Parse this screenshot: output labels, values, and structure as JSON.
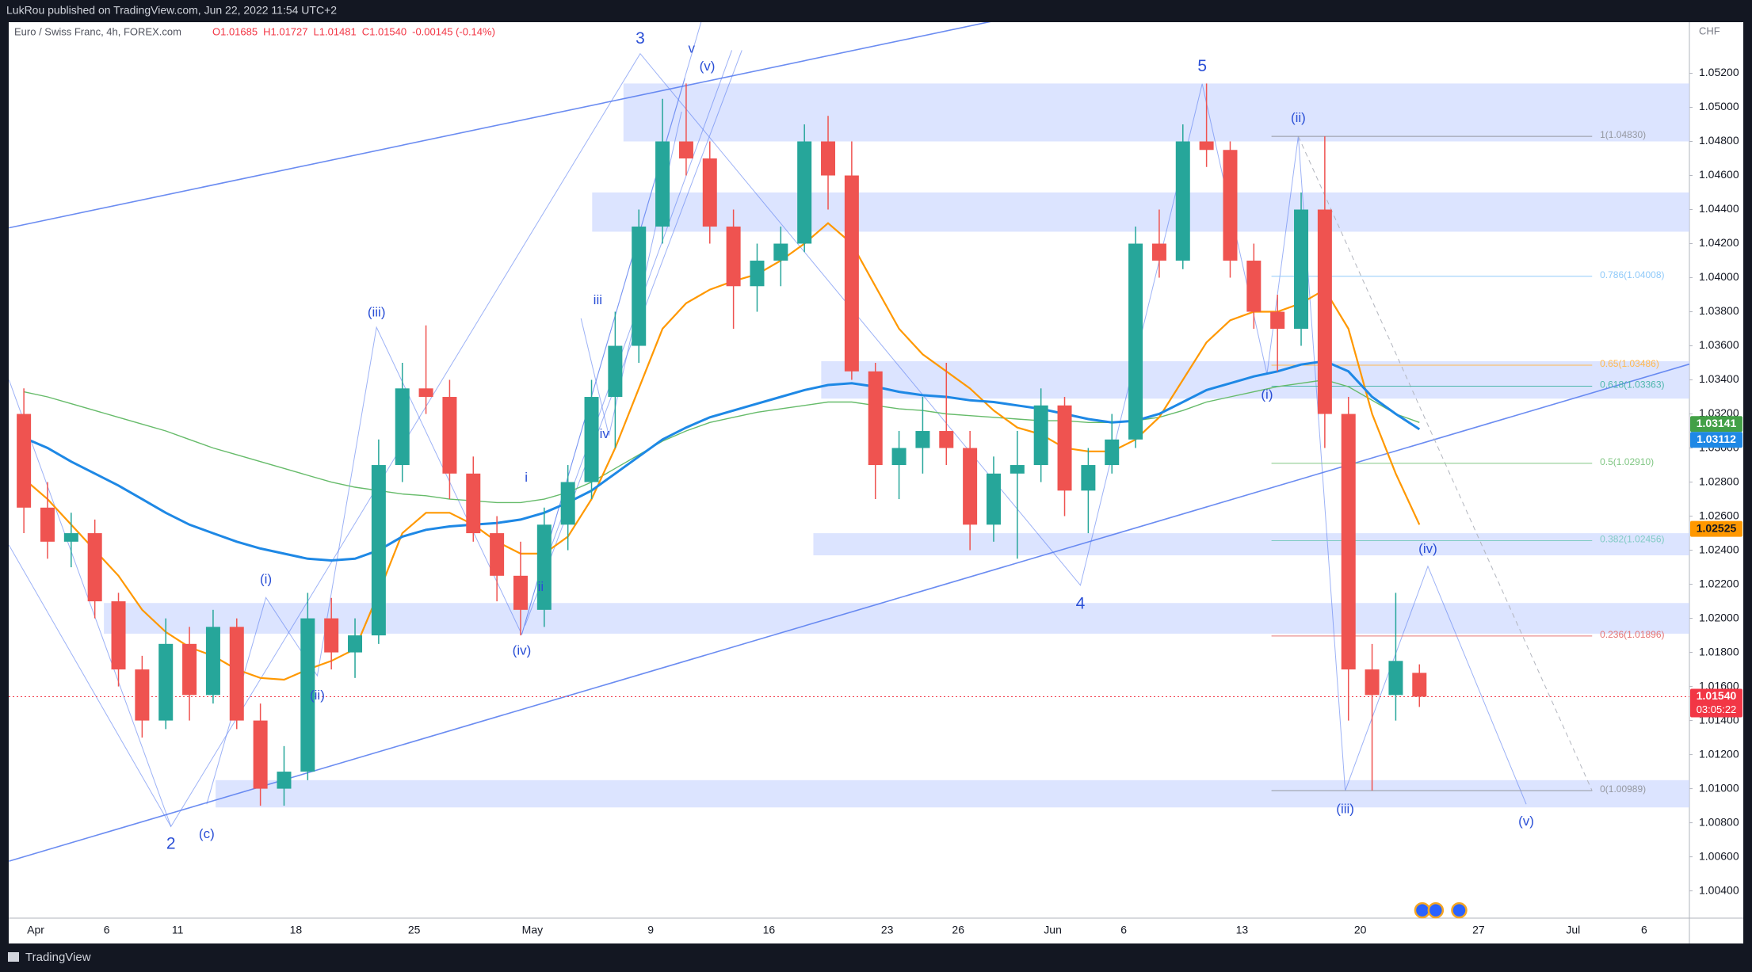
{
  "header": "LukRou published on TradingView.com, Jun 22, 2022 11:54 UTC+2",
  "footer": "TradingView",
  "chart_data": {
    "type": "candlestick",
    "title": "Euro / Swiss Franc, 4h, FOREX.com",
    "ohlc_legend": [
      "O1.01685",
      "H1.01727",
      "L1.01481",
      "C1.01540",
      "-0.00145 (-0.14%)"
    ],
    "y_axis_label": "CHF",
    "categories": [
      null,
      "Apr",
      null,
      null,
      "6",
      null,
      null,
      "11",
      null,
      null,
      null,
      null,
      "18",
      null,
      null,
      null,
      null,
      "25",
      null,
      null,
      null,
      null,
      "May",
      null,
      null,
      null,
      null,
      "9",
      null,
      null,
      null,
      null,
      "16",
      null,
      null,
      null,
      null,
      "23",
      null,
      null,
      "26",
      null,
      null,
      null,
      "Jun",
      null,
      null,
      "6",
      null,
      null,
      null,
      null,
      "13",
      null,
      null,
      null,
      null,
      "20",
      null,
      null,
      null,
      null,
      "27",
      null,
      null,
      null,
      "Jul",
      null,
      null,
      "6"
    ],
    "open": [
      1.032,
      1.0265,
      1.0245,
      1.025,
      1.021,
      1.017,
      1.014,
      1.0185,
      1.0155,
      1.0195,
      1.014,
      1.01,
      1.011,
      1.02,
      1.018,
      1.019,
      1.029,
      1.0335,
      1.033,
      1.0285,
      1.025,
      1.0225,
      1.0205,
      1.0255,
      1.028,
      1.033,
      1.036,
      1.043,
      1.048,
      1.047,
      1.043,
      1.0395,
      1.041,
      1.042,
      1.048,
      1.046,
      1.0345,
      1.029,
      1.03,
      1.031,
      1.03,
      1.0255,
      1.0285,
      1.029,
      1.0325,
      1.0275,
      1.029,
      1.0305,
      1.042,
      1.041,
      1.048,
      1.0475,
      1.041,
      1.038,
      1.037,
      1.044,
      1.032,
      1.017,
      1.0155,
      1.0168,
      null,
      null,
      null,
      null,
      null,
      null,
      null,
      null,
      null,
      null
    ],
    "high": [
      1.0335,
      1.028,
      1.0262,
      1.0258,
      1.0215,
      1.0178,
      1.02,
      1.0195,
      1.0205,
      1.02,
      1.015,
      1.0125,
      1.0215,
      1.0212,
      1.02,
      1.0305,
      1.035,
      1.0372,
      1.034,
      1.0295,
      1.026,
      1.0245,
      1.0265,
      1.029,
      1.034,
      1.038,
      1.044,
      1.0505,
      1.0514,
      1.048,
      1.044,
      1.042,
      1.043,
      1.049,
      1.0495,
      1.048,
      1.035,
      1.031,
      1.033,
      1.035,
      1.031,
      1.0295,
      1.031,
      1.0335,
      1.033,
      1.03,
      1.032,
      1.043,
      1.044,
      1.049,
      1.0514,
      1.048,
      1.042,
      1.039,
      1.045,
      1.0483,
      1.033,
      1.0185,
      1.0215,
      1.0173,
      null,
      null,
      null,
      null,
      null,
      null,
      null,
      null,
      null,
      null
    ],
    "low": [
      1.025,
      1.0235,
      1.023,
      1.02,
      1.016,
      1.013,
      1.0135,
      1.014,
      1.015,
      1.0135,
      1.009,
      1.009,
      1.0105,
      1.017,
      1.0165,
      1.0185,
      1.028,
      1.032,
      1.027,
      1.0245,
      1.021,
      1.019,
      1.0195,
      1.024,
      1.027,
      1.03,
      1.035,
      1.042,
      1.046,
      1.042,
      1.037,
      1.038,
      1.0395,
      1.0415,
      1.044,
      1.034,
      1.027,
      1.027,
      1.0285,
      1.029,
      1.024,
      1.0245,
      1.0235,
      1.028,
      1.026,
      1.025,
      1.0285,
      1.03,
      1.04,
      1.0405,
      1.0465,
      1.04,
      1.037,
      1.0345,
      1.036,
      1.03,
      1.014,
      1.0099,
      1.014,
      1.0148,
      null,
      null,
      null,
      null,
      null,
      null,
      null,
      null,
      null,
      null
    ],
    "close": [
      1.0265,
      1.0245,
      1.025,
      1.021,
      1.017,
      1.014,
      1.0185,
      1.0155,
      1.0195,
      1.014,
      1.01,
      1.011,
      1.02,
      1.018,
      1.019,
      1.029,
      1.0335,
      1.033,
      1.0285,
      1.025,
      1.0225,
      1.0205,
      1.0255,
      1.028,
      1.033,
      1.036,
      1.043,
      1.048,
      1.047,
      1.043,
      1.0395,
      1.041,
      1.042,
      1.048,
      1.046,
      1.0345,
      1.029,
      1.03,
      1.031,
      1.03,
      1.0255,
      1.0285,
      1.029,
      1.0325,
      1.0275,
      1.029,
      1.0305,
      1.042,
      1.041,
      1.048,
      1.0475,
      1.041,
      1.038,
      1.037,
      1.044,
      1.032,
      1.017,
      1.0155,
      1.0175,
      1.0154,
      null,
      null,
      null,
      null,
      null,
      null,
      null,
      null,
      null,
      null
    ],
    "up_color": "#26a69a",
    "down_color": "#ef5350",
    "series": [
      {
        "color": "#66bb6a",
        "values": [
          1.0333,
          1.033,
          1.0326,
          1.0322,
          1.0318,
          1.0314,
          1.031,
          1.0305,
          1.03,
          1.0296,
          1.0292,
          1.0288,
          1.0284,
          1.028,
          1.0277,
          1.0275,
          1.0273,
          1.0272,
          1.027,
          1.0269,
          1.0268,
          1.0268,
          1.027,
          1.0274,
          1.028,
          1.0288,
          1.0296,
          1.0304,
          1.031,
          1.0315,
          1.0318,
          1.0321,
          1.0323,
          1.0325,
          1.0327,
          1.0327,
          1.0325,
          1.0323,
          1.0322,
          1.032,
          1.0319,
          1.0318,
          1.0317,
          1.0316,
          1.0316,
          1.0315,
          1.0315,
          1.0316,
          1.0318,
          1.0322,
          1.0327,
          1.033,
          1.0333,
          1.0336,
          1.0338,
          1.034,
          1.0336,
          1.0328,
          1.032,
          1.0315,
          null,
          null,
          null,
          null,
          null,
          null,
          null,
          null,
          null,
          null
        ]
      },
      {
        "color": "#ff9800",
        "values": [
          1.0282,
          1.027,
          1.0255,
          1.024,
          1.0225,
          1.0205,
          1.0192,
          1.0183,
          1.0178,
          1.017,
          1.0165,
          1.0164,
          1.017,
          1.0175,
          1.0182,
          1.0215,
          1.025,
          1.0262,
          1.0262,
          1.0255,
          1.0245,
          1.0238,
          1.0238,
          1.0248,
          1.027,
          1.03,
          1.0335,
          1.037,
          1.0385,
          1.0393,
          1.0398,
          1.0402,
          1.041,
          1.042,
          1.0432,
          1.042,
          1.0395,
          1.037,
          1.0355,
          1.0345,
          1.0335,
          1.0322,
          1.0312,
          1.0308,
          1.03,
          1.0298,
          1.0298,
          1.0305,
          1.0318,
          1.034,
          1.0362,
          1.0375,
          1.038,
          1.038,
          1.0385,
          1.0393,
          1.037,
          1.032,
          1.0285,
          1.0255,
          null,
          null,
          null,
          null,
          null,
          null,
          null,
          null,
          null,
          null
        ]
      },
      {
        "color": "#1e88e5",
        "values": [
          1.0306,
          1.03,
          1.0292,
          1.0285,
          1.0278,
          1.027,
          1.0262,
          1.0255,
          1.025,
          1.0245,
          1.0241,
          1.0238,
          1.0235,
          1.0234,
          1.0235,
          1.024,
          1.0248,
          1.0252,
          1.0254,
          1.0255,
          1.0256,
          1.0258,
          1.0262,
          1.0268,
          1.0275,
          1.0285,
          1.0295,
          1.0305,
          1.0312,
          1.0318,
          1.0322,
          1.0326,
          1.033,
          1.0334,
          1.0337,
          1.0338,
          1.0336,
          1.0333,
          1.0331,
          1.033,
          1.0328,
          1.0327,
          1.0325,
          1.0323,
          1.032,
          1.0317,
          1.0315,
          1.0316,
          1.032,
          1.0327,
          1.0334,
          1.0338,
          1.0342,
          1.0345,
          1.0349,
          1.0351,
          1.0345,
          1.033,
          1.032,
          1.0311,
          null,
          null,
          null,
          null,
          null,
          null,
          null,
          null,
          null,
          null
        ]
      }
    ],
    "ylim": [
      1.0024,
      1.055
    ],
    "yticks": [
      {
        "value": 1.004,
        "label": "1.00400"
      },
      {
        "value": 1.006,
        "label": "1.00600"
      },
      {
        "value": 1.008,
        "label": "1.00800"
      },
      {
        "value": 1.01,
        "label": "1.01000"
      },
      {
        "value": 1.012,
        "label": "1.01200"
      },
      {
        "value": 1.014,
        "label": "1.01400"
      },
      {
        "value": 1.016,
        "label": "1.01600"
      },
      {
        "value": 1.018,
        "label": "1.01800"
      },
      {
        "value": 1.02,
        "label": "1.02000"
      },
      {
        "value": 1.022,
        "label": "1.02200"
      },
      {
        "value": 1.024,
        "label": "1.02400"
      },
      {
        "value": 1.026,
        "label": "1.02600"
      },
      {
        "value": 1.028,
        "label": "1.02800"
      },
      {
        "value": 1.03,
        "label": "1.03000"
      },
      {
        "value": 1.032,
        "label": "1.03200"
      },
      {
        "value": 1.034,
        "label": "1.03400"
      },
      {
        "value": 1.036,
        "label": "1.03600"
      },
      {
        "value": 1.038,
        "label": "1.03800"
      },
      {
        "value": 1.04,
        "label": "1.04000"
      },
      {
        "value": 1.042,
        "label": "1.04200"
      },
      {
        "value": 1.044,
        "label": "1.04400"
      },
      {
        "value": 1.046,
        "label": "1.04600"
      },
      {
        "value": 1.048,
        "label": "1.04800"
      },
      {
        "value": 1.05,
        "label": "1.05000"
      },
      {
        "value": 1.052,
        "label": "1.05200"
      }
    ],
    "zones": [
      {
        "low": 1.048,
        "high": 1.0514
      },
      {
        "low": 1.0427,
        "high": 1.045
      },
      {
        "low": 1.0329,
        "high": 1.0351
      },
      {
        "low": 1.0237,
        "high": 1.025
      },
      {
        "low": 1.0191,
        "high": 1.0209
      },
      {
        "low": 1.0089,
        "high": 1.0105
      }
    ],
    "fib": [
      {
        "value": 1.0483,
        "label": "1(1.04830)",
        "color": "#9598a1"
      },
      {
        "value": 1.04008,
        "label": "0.786(1.04008)",
        "color": "#90caf9"
      },
      {
        "value": 1.03486,
        "label": "0.65(1.03486)",
        "color": "#ffb74d"
      },
      {
        "value": 1.03363,
        "label": "0.618(1.03363)",
        "color": "#4db6ac"
      },
      {
        "value": 1.0291,
        "label": "0.5(1.02910)",
        "color": "#81c784"
      },
      {
        "value": 1.02456,
        "label": "0.382(1.02456)",
        "color": "#80cbc4"
      },
      {
        "value": 1.01896,
        "label": "0.236(1.01896)",
        "color": "#e57373"
      },
      {
        "value": 1.00989,
        "label": "0(1.00989)",
        "color": "#9598a1"
      }
    ],
    "price_labels": [
      {
        "value": 1.03141,
        "label": "1.03141",
        "color": "#43a047"
      },
      {
        "value": 1.03112,
        "label": "1.03112",
        "color": "#1e88e5"
      },
      {
        "value": 1.02525,
        "label": "1.02525",
        "color": "#ff9800"
      },
      {
        "value": 1.0154,
        "label": "1.01540",
        "color": "#f23645",
        "countdown": "03:05:22"
      }
    ],
    "wave_labels": [
      "3",
      "(v)",
      "v",
      "5",
      "(ii)",
      "(iii)",
      "iii",
      "iv",
      "i",
      "ii",
      "(iv)",
      "(i)",
      "(ii)",
      "2",
      "(c)",
      "4",
      "(i)",
      "(iv)",
      "(iii)",
      "(v)"
    ]
  }
}
